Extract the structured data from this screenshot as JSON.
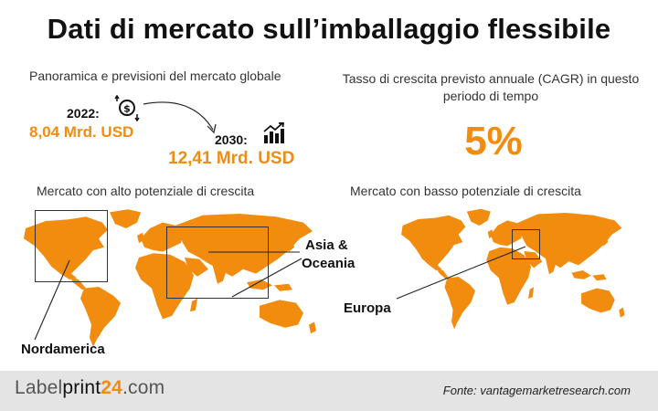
{
  "title": "Dati di mercato sull’imballaggio flessibile",
  "forecast": {
    "label": "Panoramica e previsioni del mercato globale",
    "year_2022": "2022:",
    "value_2022": "8,04 Mrd. USD",
    "year_2030": "2030:",
    "value_2030": "12,41 Mrd. USD"
  },
  "cagr": {
    "label": "Tasso di crescita previsto annuale (CAGR) in questo periodo di tempo",
    "value": "5%"
  },
  "high_potential": {
    "label": "Mercato con alto potenziale di crescita",
    "regions": [
      "Nordamerica",
      "Asia &",
      "Oceania"
    ]
  },
  "low_potential": {
    "label": "Mercato con basso potenziale di crescita",
    "regions": [
      "Europa"
    ]
  },
  "footer": {
    "logo_a": "Label",
    "logo_b": "print",
    "logo_c": "24",
    "logo_d": ".com",
    "source": "Fonte: vantagemarketresearch.com"
  },
  "colors": {
    "accent": "#f28c0f",
    "footer_bg": "#e4e4e4"
  },
  "icons": [
    "dollar-coin-icon",
    "growth-chart-icon",
    "curved-arrow-icon",
    "world-map-icon"
  ]
}
